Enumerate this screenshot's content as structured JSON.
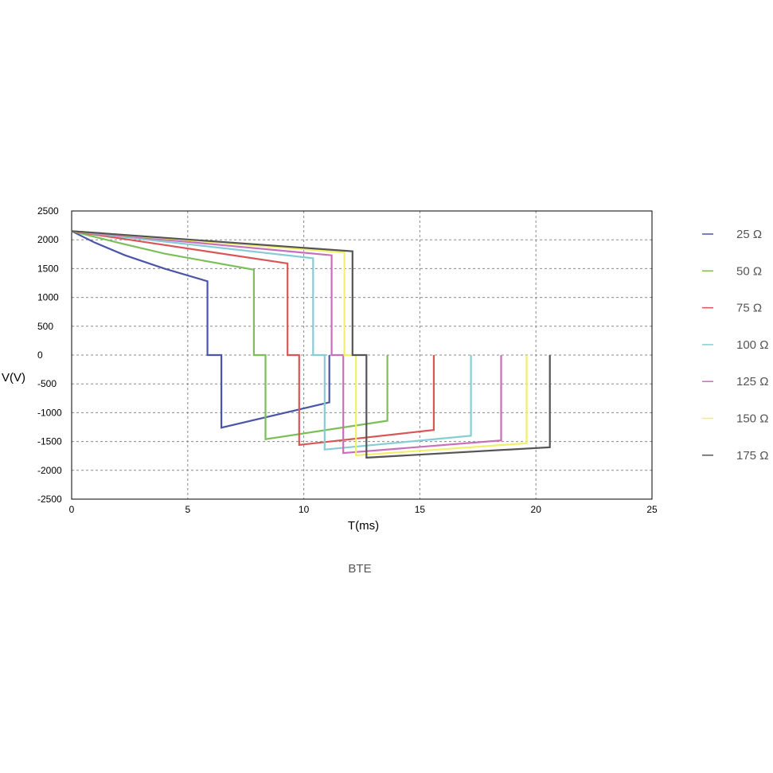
{
  "chart_data": {
    "type": "line",
    "caption": "BTE",
    "xlabel": "T(ms)",
    "ylabel": "V(V)",
    "xlim": [
      0,
      25
    ],
    "ylim": [
      -2500,
      2500
    ],
    "xticks": [
      0,
      5,
      10,
      15,
      20,
      25
    ],
    "yticks": [
      2500,
      2000,
      1500,
      1000,
      500,
      0,
      -500,
      -1000,
      -1500,
      -2000,
      -2500
    ],
    "grid": true,
    "legend_position": "right",
    "series": [
      {
        "name": "25 Ω",
        "color": "#4a55a8",
        "points": [
          [
            0,
            2150
          ],
          [
            1,
            1950
          ],
          [
            2.3,
            1730
          ],
          [
            4,
            1500
          ],
          [
            5.85,
            1280
          ],
          [
            5.85,
            0
          ],
          [
            6.45,
            0
          ],
          [
            6.45,
            -1260
          ],
          [
            11.1,
            -820
          ],
          [
            11.1,
            0
          ]
        ]
      },
      {
        "name": "50 Ω",
        "color": "#7cbf5a",
        "points": [
          [
            0,
            2150
          ],
          [
            2,
            1950
          ],
          [
            4,
            1760
          ],
          [
            7.85,
            1480
          ],
          [
            7.85,
            0
          ],
          [
            8.35,
            0
          ],
          [
            8.35,
            -1460
          ],
          [
            13.6,
            -1140
          ],
          [
            13.6,
            0
          ]
        ]
      },
      {
        "name": "75 Ω",
        "color": "#d95557",
        "points": [
          [
            0,
            2150
          ],
          [
            2.5,
            2000
          ],
          [
            9.3,
            1590
          ],
          [
            9.3,
            0
          ],
          [
            9.8,
            0
          ],
          [
            9.8,
            -1560
          ],
          [
            15.6,
            -1300
          ],
          [
            15.6,
            0
          ]
        ]
      },
      {
        "name": "100 Ω",
        "color": "#86ccd4",
        "points": [
          [
            0,
            2150
          ],
          [
            10.4,
            1680
          ],
          [
            10.4,
            0
          ],
          [
            10.9,
            0
          ],
          [
            10.9,
            -1640
          ],
          [
            17.2,
            -1400
          ],
          [
            17.2,
            0
          ]
        ]
      },
      {
        "name": "125 Ω",
        "color": "#c86fba",
        "points": [
          [
            0,
            2150
          ],
          [
            11.2,
            1730
          ],
          [
            11.2,
            0
          ],
          [
            11.7,
            0
          ],
          [
            11.7,
            -1700
          ],
          [
            18.5,
            -1480
          ],
          [
            18.5,
            0
          ]
        ]
      },
      {
        "name": "150 Ω",
        "color": "#f2ef6a",
        "points": [
          [
            0,
            2150
          ],
          [
            11.75,
            1780
          ],
          [
            11.75,
            0
          ],
          [
            12.25,
            0
          ],
          [
            12.25,
            -1740
          ],
          [
            19.6,
            -1530
          ],
          [
            19.6,
            0
          ]
        ]
      },
      {
        "name": "175 Ω",
        "color": "#555555",
        "points": [
          [
            0,
            2150
          ],
          [
            12.1,
            1800
          ],
          [
            12.1,
            0
          ],
          [
            12.7,
            0
          ],
          [
            12.7,
            -1780
          ],
          [
            20.6,
            -1600
          ],
          [
            20.6,
            0
          ]
        ]
      }
    ]
  }
}
